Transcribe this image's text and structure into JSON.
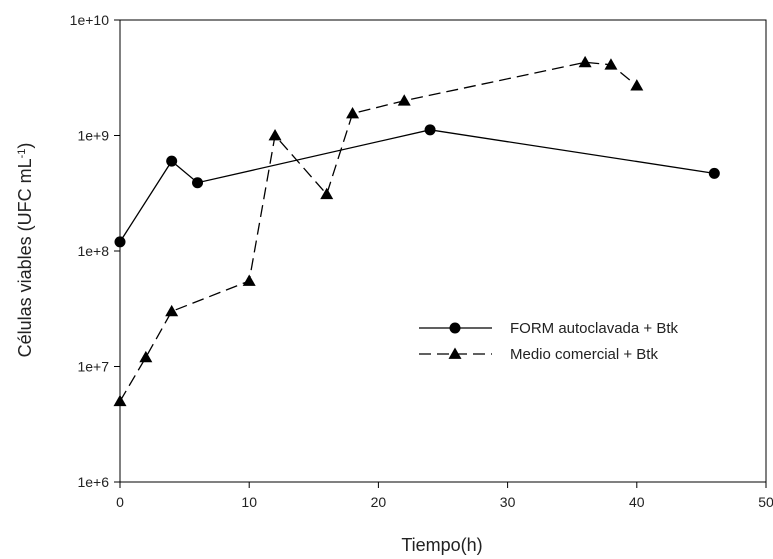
{
  "chart_data": {
    "type": "line",
    "title": "",
    "xlabel": "Tiempo(h)",
    "ylabel": {
      "main": "Células viables (UFC mL",
      "sup": "-1",
      "end": ")"
    },
    "xlim": [
      0,
      50
    ],
    "ylim": [
      1000000,
      10000000000
    ],
    "yscale": "log",
    "grid": false,
    "x_ticks": [
      0,
      10,
      20,
      30,
      40,
      50
    ],
    "x_tick_labels": [
      "0",
      "10",
      "20",
      "30",
      "40",
      "50"
    ],
    "y_ticks": [
      1000000,
      10000000,
      100000000,
      1000000000,
      10000000000
    ],
    "y_tick_labels": [
      "1e+6",
      "1e+7",
      "1e+8",
      "1e+9",
      "1e+10"
    ],
    "legend_position": "right",
    "series": [
      {
        "name": "FORM autoclavada + Btk",
        "marker": "circle",
        "line_style": "solid",
        "color": "#000000",
        "x": [
          0,
          4,
          6,
          24,
          46
        ],
        "y": [
          120000000,
          600000000,
          390000000,
          1120000000,
          470000000
        ]
      },
      {
        "name": "Medio comercial  + Btk",
        "marker": "triangle",
        "line_style": "dashed",
        "color": "#000000",
        "x": [
          0,
          2,
          4,
          10,
          12,
          16,
          18,
          22,
          36,
          38,
          40
        ],
        "y": [
          5000000,
          12000000,
          30000000,
          55000000,
          1000000000,
          310000000,
          1550000000,
          2000000000,
          4300000000,
          4100000000,
          2700000000
        ]
      }
    ]
  }
}
